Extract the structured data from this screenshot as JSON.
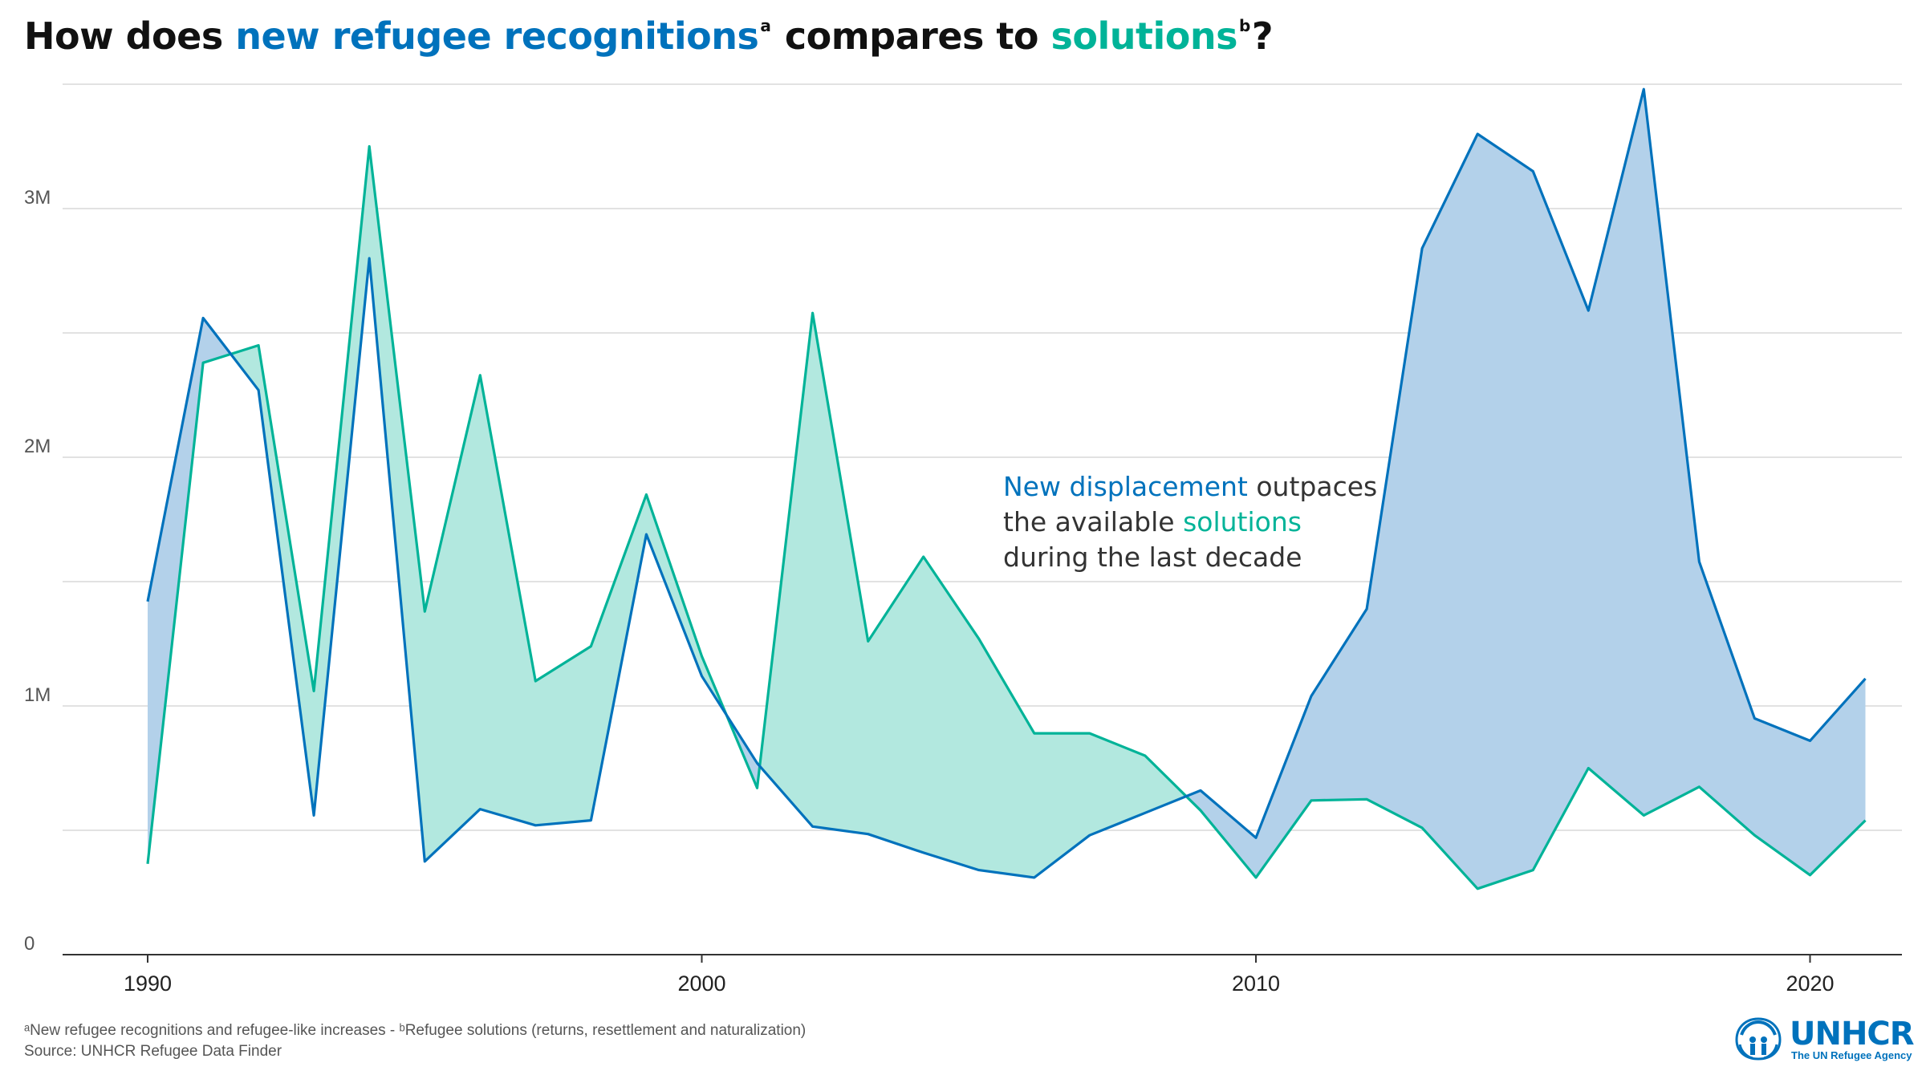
{
  "title": {
    "prefix": "How does ",
    "highlight_1": "new refugee recognitions",
    "sup_1": "a",
    "middle": " compares to ",
    "highlight_2": "solutions",
    "sup_2": "b",
    "suffix": "?"
  },
  "annotation": {
    "line1_highlight": "New displacement",
    "line1_rest": " outpaces",
    "line2_prefix": "the available ",
    "line2_highlight": "solutions",
    "line3": "during the last decade"
  },
  "footnote": {
    "line1": "ᵃNew refugee recognitions and refugee-like increases - ᵇRefugee solutions (returns, resettlement and naturalization)",
    "line2": "Source: UNHCR Refugee Data Finder"
  },
  "logo": {
    "name": "UNHCR",
    "tagline": "The UN Refugee Agency",
    "icon": "unhcr-emblem-icon"
  },
  "colors": {
    "recognitions": "#0072bc",
    "solutions": "#00b398",
    "recognitions_fill": "#b3d1ea",
    "solutions_fill": "#b2e8df",
    "grid": "#d0d0d0",
    "axis": "#333333"
  },
  "chart_data": {
    "type": "area",
    "grid": true,
    "xlim": [
      1990,
      2021
    ],
    "ylim": [
      0,
      3500000
    ],
    "x_ticks": [
      1990,
      2000,
      2010,
      2020
    ],
    "x_tick_labels": [
      "1990",
      "2000",
      "2010",
      "2020"
    ],
    "y_ticks": [
      0,
      1000000,
      2000000,
      3000000
    ],
    "y_tick_labels": [
      "0",
      "1M",
      "2M",
      "3M"
    ],
    "x": [
      1990,
      1991,
      1992,
      1993,
      1994,
      1995,
      1996,
      1997,
      1998,
      1999,
      2000,
      2001,
      2002,
      2003,
      2004,
      2005,
      2006,
      2007,
      2008,
      2009,
      2010,
      2011,
      2012,
      2013,
      2014,
      2015,
      2016,
      2017,
      2018,
      2019,
      2020,
      2021
    ],
    "series": [
      {
        "key": "recognitions",
        "values": [
          1420000,
          2560000,
          2270000,
          560000,
          2800000,
          375000,
          585000,
          520000,
          540000,
          1690000,
          1120000,
          770000,
          515000,
          485000,
          410000,
          340000,
          310000,
          480000,
          570000,
          660000,
          470000,
          1040000,
          1390000,
          2840000,
          3300000,
          3150000,
          2590000,
          3480000,
          1580000,
          950000,
          860000,
          1110000
        ]
      },
      {
        "key": "solutions",
        "values": [
          365000,
          2380000,
          2450000,
          1060000,
          3250000,
          1380000,
          2330000,
          1100000,
          1240000,
          1850000,
          1200000,
          670000,
          2580000,
          1260000,
          1600000,
          1270000,
          890000,
          890000,
          800000,
          580000,
          310000,
          620000,
          625000,
          510000,
          265000,
          340000,
          750000,
          560000,
          675000,
          480000,
          320000,
          540000
        ]
      }
    ]
  }
}
